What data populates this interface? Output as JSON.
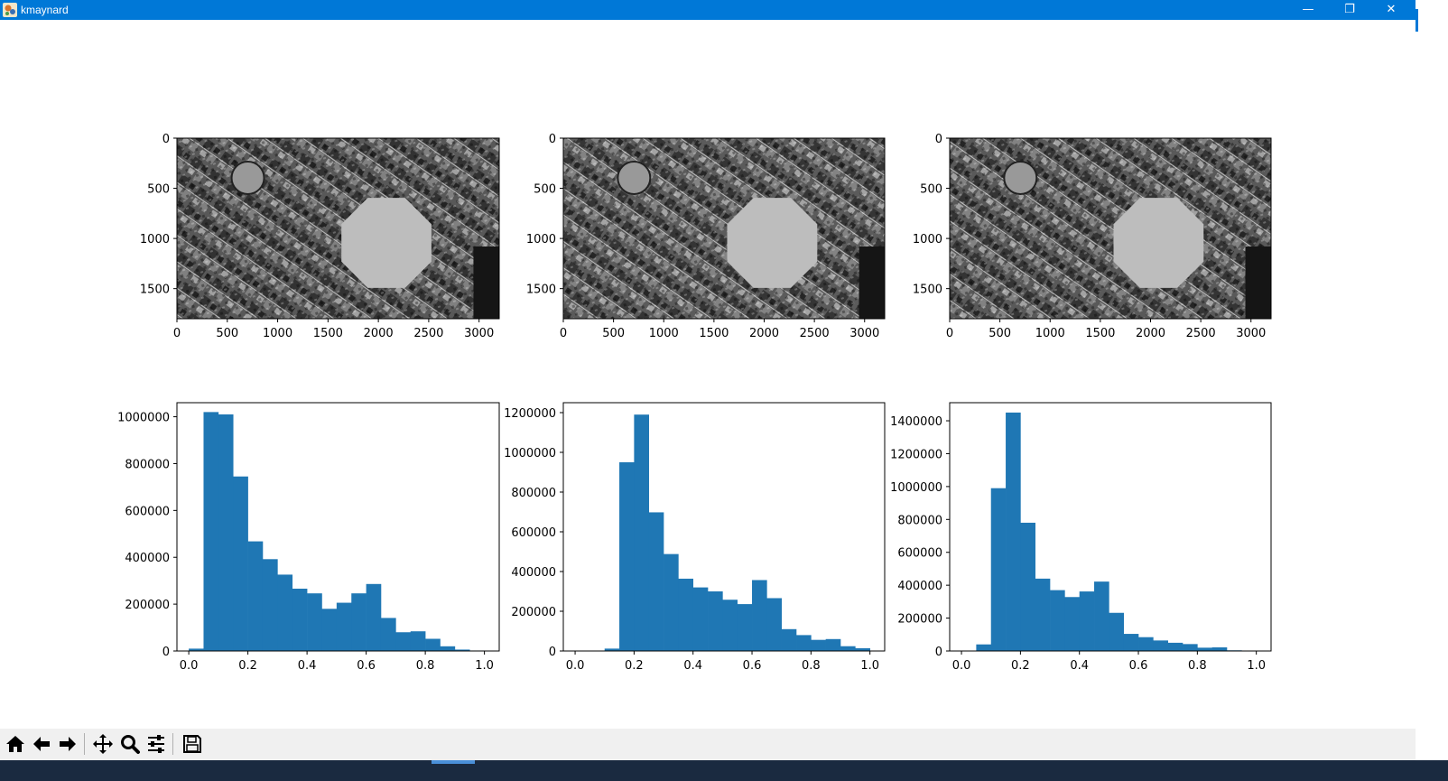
{
  "window": {
    "title": "kmaynard",
    "min_glyph": "—",
    "max_glyph": "❐",
    "close_glyph": "✕"
  },
  "colors": {
    "bar": "#1f77b4",
    "titlebar": "#0078d7",
    "toolbar": "#f0f0f0"
  },
  "toolbar": {
    "buttons": [
      {
        "name": "home-button",
        "icon": "home-icon"
      },
      {
        "name": "back-button",
        "icon": "arrow-left-icon"
      },
      {
        "name": "forward-button",
        "icon": "arrow-right-icon"
      },
      {
        "name": "pan-button",
        "icon": "move-icon"
      },
      {
        "name": "zoom-button",
        "icon": "magnifier-icon"
      },
      {
        "name": "configure-subplots-button",
        "icon": "sliders-icon"
      },
      {
        "name": "save-button",
        "icon": "floppy-disk-icon"
      }
    ]
  },
  "chart_data": [
    {
      "type": "image",
      "content": "grayscale aerial image",
      "xlim": [
        0,
        3200
      ],
      "ylim": [
        1800,
        0
      ],
      "xticks": [
        "0",
        "500",
        "1000",
        "1500",
        "2000",
        "2500",
        "3000"
      ],
      "yticks": [
        "0",
        "500",
        "1000",
        "1500"
      ]
    },
    {
      "type": "image",
      "content": "grayscale aerial image",
      "xlim": [
        0,
        3200
      ],
      "ylim": [
        1800,
        0
      ],
      "xticks": [
        "0",
        "500",
        "1000",
        "1500",
        "2000",
        "2500",
        "3000"
      ],
      "yticks": [
        "0",
        "500",
        "1000",
        "1500"
      ]
    },
    {
      "type": "image",
      "content": "grayscale aerial image",
      "xlim": [
        0,
        3200
      ],
      "ylim": [
        1800,
        0
      ],
      "xticks": [
        "0",
        "500",
        "1000",
        "1500",
        "2000",
        "2500",
        "3000"
      ],
      "yticks": [
        "0",
        "500",
        "1000",
        "1500"
      ]
    },
    {
      "type": "bar",
      "subtype": "histogram",
      "bin_edges": [
        0.0,
        0.05,
        0.1,
        0.15,
        0.2,
        0.25,
        0.3,
        0.35,
        0.4,
        0.45,
        0.5,
        0.55,
        0.6,
        0.65,
        0.7,
        0.75,
        0.8,
        0.85,
        0.9,
        0.95,
        1.0
      ],
      "values": [
        10000,
        1020000,
        1010000,
        745000,
        468000,
        392000,
        326000,
        266000,
        246000,
        180000,
        206000,
        246000,
        286000,
        141000,
        80000,
        84000,
        52000,
        20000,
        6000,
        2000
      ],
      "xlim": [
        -0.04,
        1.05
      ],
      "ylim": [
        0,
        1060000
      ],
      "xticks": [
        "0.0",
        "0.2",
        "0.4",
        "0.6",
        "0.8",
        "1.0"
      ],
      "yticks": [
        "0",
        "200000",
        "400000",
        "600000",
        "800000",
        "1000000"
      ]
    },
    {
      "type": "bar",
      "subtype": "histogram",
      "bin_edges": [
        0.0,
        0.05,
        0.1,
        0.15,
        0.2,
        0.25,
        0.3,
        0.35,
        0.4,
        0.45,
        0.5,
        0.55,
        0.6,
        0.65,
        0.7,
        0.75,
        0.8,
        0.85,
        0.9,
        0.95,
        1.0
      ],
      "values": [
        0,
        2000,
        12000,
        950000,
        1190000,
        698000,
        488000,
        364000,
        320000,
        300000,
        258000,
        236000,
        357000,
        266000,
        110000,
        80000,
        56000,
        60000,
        24000,
        14000
      ],
      "xlim": [
        -0.04,
        1.05
      ],
      "ylim": [
        0,
        1250000
      ],
      "xticks": [
        "0.0",
        "0.2",
        "0.4",
        "0.6",
        "0.8",
        "1.0"
      ],
      "yticks": [
        "0",
        "200000",
        "400000",
        "600000",
        "800000",
        "1000000",
        "1200000"
      ]
    },
    {
      "type": "bar",
      "subtype": "histogram",
      "bin_edges": [
        0.0,
        0.05,
        0.1,
        0.15,
        0.2,
        0.25,
        0.3,
        0.35,
        0.4,
        0.45,
        0.5,
        0.55,
        0.6,
        0.65,
        0.7,
        0.75,
        0.8,
        0.85,
        0.9,
        0.95,
        1.0
      ],
      "values": [
        0,
        40000,
        990000,
        1450000,
        780000,
        440000,
        370000,
        328000,
        362000,
        422000,
        232000,
        104000,
        84000,
        64000,
        50000,
        42000,
        20000,
        22000,
        4000,
        2000
      ],
      "xlim": [
        -0.04,
        1.05
      ],
      "ylim": [
        0,
        1510000
      ],
      "xticks": [
        "0.0",
        "0.2",
        "0.4",
        "0.6",
        "0.8",
        "1.0"
      ],
      "yticks": [
        "0",
        "200000",
        "400000",
        "600000",
        "800000",
        "1000000",
        "1200000",
        "1400000"
      ]
    }
  ]
}
